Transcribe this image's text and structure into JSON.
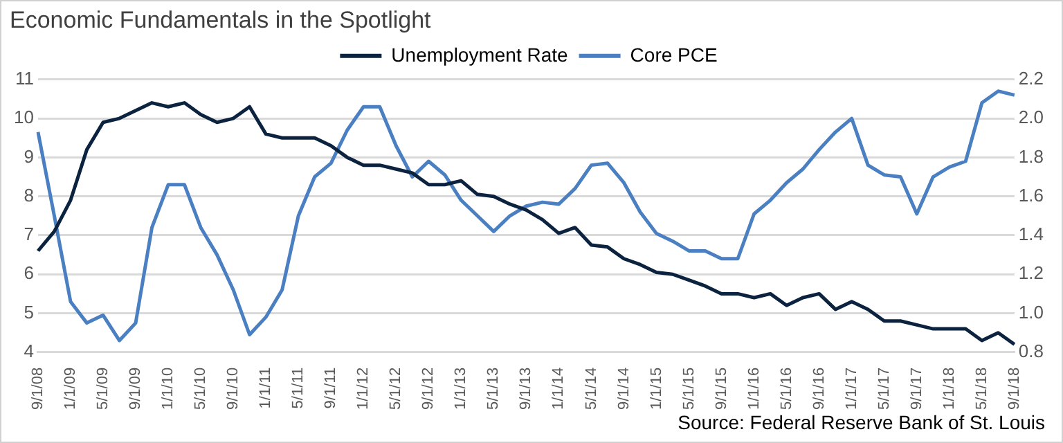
{
  "chart_data": {
    "type": "line",
    "title": "Economic Fundamentals in the Spotlight",
    "categories": [
      "9/1/08",
      null,
      "1/1/09",
      null,
      "5/1/09",
      null,
      "9/1/09",
      null,
      "1/1/10",
      null,
      "5/1/10",
      null,
      "9/1/10",
      null,
      "1/1/11",
      null,
      "5/1/11",
      null,
      "9/1/11",
      null,
      "1/1/12",
      null,
      "5/1/12",
      null,
      "9/1/12",
      null,
      "1/1/13",
      null,
      "5/1/13",
      null,
      "9/1/13",
      null,
      "1/1/14",
      null,
      "5/1/14",
      null,
      "9/1/14",
      null,
      "1/1/15",
      null,
      "5/1/15",
      null,
      "9/1/15",
      null,
      "1/1/16",
      null,
      "5/1/16",
      null,
      "9/1/16",
      null,
      "1/1/17",
      null,
      "5/1/17",
      null,
      "9/1/17",
      null,
      "1/1/18",
      null,
      "5/1/18",
      null,
      "9/1/18"
    ],
    "series": [
      {
        "name": "Unemployment Rate",
        "color": "#0c2340",
        "values": [
          6.6,
          7.1,
          7.9,
          9.2,
          9.9,
          10.0,
          10.2,
          10.4,
          10.3,
          10.4,
          10.1,
          9.9,
          10.0,
          10.3,
          9.6,
          9.5,
          9.5,
          9.5,
          9.3,
          9.0,
          8.8,
          8.8,
          8.7,
          8.6,
          8.3,
          8.3,
          8.4,
          8.05,
          8.0,
          7.8,
          7.65,
          7.4,
          7.05,
          7.2,
          6.75,
          6.7,
          6.4,
          6.25,
          6.05,
          6.0,
          5.85,
          5.7,
          5.5,
          5.5,
          5.4,
          5.5,
          5.2,
          5.4,
          5.5,
          5.1,
          5.3,
          5.1,
          4.8,
          4.8,
          4.7,
          4.6,
          4.6,
          4.6,
          4.3,
          4.5,
          4.2
        ]
      },
      {
        "name": "Core PCE",
        "color": "#4a7fc1",
        "axis": "y2",
        "values": [
          1.93,
          1.5,
          1.06,
          0.95,
          0.99,
          0.86,
          0.95,
          1.44,
          1.66,
          1.66,
          1.44,
          1.3,
          1.12,
          0.89,
          0.98,
          1.12,
          1.5,
          1.7,
          1.77,
          1.94,
          2.06,
          2.06,
          1.86,
          1.7,
          1.78,
          1.71,
          1.58,
          1.5,
          1.42,
          1.5,
          1.55,
          1.57,
          1.56,
          1.64,
          1.76,
          1.77,
          1.67,
          1.52,
          1.41,
          1.37,
          1.32,
          1.32,
          1.28,
          1.28,
          1.51,
          1.58,
          1.67,
          1.74,
          1.84,
          1.93,
          2.0,
          1.76,
          1.71,
          1.7,
          1.51,
          1.7,
          1.75,
          1.78,
          2.08,
          2.14,
          2.12
        ]
      }
    ],
    "ylim": [
      4,
      11
    ],
    "yticks": [
      4,
      5,
      6,
      7,
      8,
      9,
      10,
      11
    ],
    "y2lim": [
      0.8,
      2.2
    ],
    "y2ticks": [
      0.8,
      {
        "value": 1,
        "label": "1.0"
      },
      1.2,
      1.4,
      1.6,
      1.8,
      {
        "value": 2,
        "label": "2.0"
      },
      2.2
    ],
    "grid": "y",
    "legend": "top",
    "marker": "none",
    "line_style": "solid",
    "annotations": [
      "Source: Federal Reserve Bank of St. Louis"
    ]
  }
}
